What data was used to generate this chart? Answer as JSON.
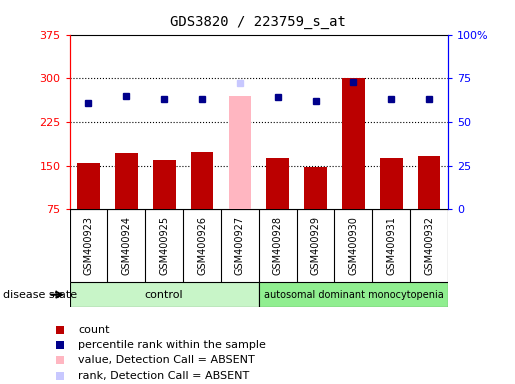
{
  "title": "GDS3820 / 223759_s_at",
  "samples": [
    "GSM400923",
    "GSM400924",
    "GSM400925",
    "GSM400926",
    "GSM400927",
    "GSM400928",
    "GSM400929",
    "GSM400930",
    "GSM400931",
    "GSM400932"
  ],
  "count_values": [
    155,
    171,
    159,
    173,
    270,
    163,
    148,
    300,
    163,
    167
  ],
  "percentile_values": [
    61,
    65,
    63,
    63,
    72,
    64,
    62,
    73,
    63,
    63
  ],
  "absent_mask": [
    false,
    false,
    false,
    false,
    true,
    false,
    false,
    false,
    false,
    false
  ],
  "left_ylim": [
    75,
    375
  ],
  "left_yticks": [
    75,
    150,
    225,
    300,
    375
  ],
  "right_ylim": [
    0,
    100
  ],
  "right_yticks": [
    0,
    25,
    50,
    75,
    100
  ],
  "right_yticklabels": [
    "0",
    "25",
    "50",
    "75",
    "100%"
  ],
  "bar_color_present": "#bb0000",
  "bar_color_absent": "#ffb6c1",
  "dot_color_present": "#00008b",
  "dot_color_absent": "#c8c8ff",
  "group1_label": "control",
  "group2_label": "autosomal dominant monocytopenia",
  "group1_count": 5,
  "group2_count": 5,
  "group_label_header": "disease state",
  "group1_color": "#c8f5c8",
  "group2_color": "#90ee90",
  "background_color": "#ffffff",
  "plot_bg_color": "#ffffff",
  "label_box_color": "#d8d8d8",
  "legend_items": [
    {
      "color": "#bb0000",
      "label": "count"
    },
    {
      "color": "#00008b",
      "label": "percentile rank within the sample"
    },
    {
      "color": "#ffb6c1",
      "label": "value, Detection Call = ABSENT"
    },
    {
      "color": "#c8c8ff",
      "label": "rank, Detection Call = ABSENT"
    }
  ]
}
